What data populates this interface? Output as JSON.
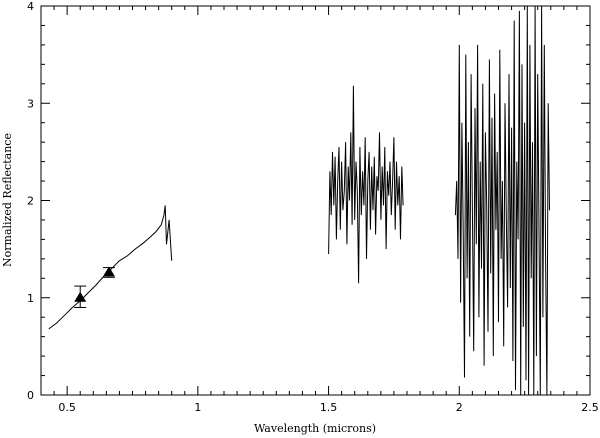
{
  "chart_data": {
    "type": "line",
    "xlabel": "Wavelength (microns)",
    "ylabel": "Normalized Reflectance",
    "xlim": [
      0.4,
      2.5
    ],
    "ylim": [
      0,
      4
    ],
    "x_ticks": [
      0.5,
      1,
      1.5,
      2,
      2.5
    ],
    "x_tick_labels": [
      "0.5",
      "1",
      "1.5",
      "2",
      "2.5"
    ],
    "y_ticks": [
      0,
      1,
      2,
      3,
      4
    ],
    "y_tick_labels": [
      "0",
      "1",
      "2",
      "3",
      "4"
    ],
    "grid": false,
    "series": [
      {
        "style": "line",
        "color": "#000000",
        "segments": [
          {
            "x": [
              0.43,
              0.46,
              0.49,
              0.52,
              0.55,
              0.58,
              0.61,
              0.64,
              0.67,
              0.7,
              0.73,
              0.76,
              0.79,
              0.82,
              0.84,
              0.86,
              0.87,
              0.875,
              0.88,
              0.89,
              0.9
            ],
            "y": [
              0.68,
              0.74,
              0.82,
              0.9,
              0.97,
              1.05,
              1.13,
              1.22,
              1.3,
              1.38,
              1.43,
              1.5,
              1.56,
              1.63,
              1.68,
              1.75,
              1.85,
              1.95,
              1.55,
              1.8,
              1.38
            ]
          },
          {
            "x": [
              1.5,
              1.505,
              1.51,
              1.515,
              1.52,
              1.525,
              1.53,
              1.535,
              1.54,
              1.545,
              1.55,
              1.555,
              1.56,
              1.565,
              1.57,
              1.575,
              1.58,
              1.585,
              1.59,
              1.595,
              1.6,
              1.605,
              1.61,
              1.615,
              1.62,
              1.625,
              1.63,
              1.635,
              1.64,
              1.645,
              1.65,
              1.655,
              1.66,
              1.665,
              1.67,
              1.675,
              1.68,
              1.685,
              1.69,
              1.695,
              1.7,
              1.705,
              1.71,
              1.715,
              1.72,
              1.725,
              1.73,
              1.735,
              1.74,
              1.745,
              1.75,
              1.755,
              1.76,
              1.765,
              1.77,
              1.775,
              1.78,
              1.785
            ],
            "y": [
              1.45,
              2.3,
              1.85,
              2.5,
              1.95,
              2.45,
              1.6,
              2.2,
              2.55,
              1.7,
              2.4,
              1.9,
              2.1,
              2.6,
              1.55,
              2.35,
              2.0,
              2.7,
              1.75,
              3.18,
              1.8,
              2.4,
              2.1,
              1.15,
              2.55,
              1.85,
              2.3,
              1.95,
              2.65,
              1.4,
              2.2,
              2.5,
              1.7,
              2.35,
              1.9,
              2.45,
              1.65,
              2.25,
              2.1,
              2.7,
              1.8,
              2.35,
              1.95,
              2.55,
              1.5,
              2.3,
              2.05,
              2.4,
              1.85,
              2.2,
              2.65,
              1.7,
              2.4,
              1.95,
              2.25,
              1.6,
              2.35,
              1.95
            ]
          },
          {
            "x": [
              1.985,
              1.99,
              1.995,
              2.0,
              2.005,
              2.01,
              2.015,
              2.02,
              2.025,
              2.03,
              2.035,
              2.04,
              2.045,
              2.05,
              2.055,
              2.06,
              2.065,
              2.07,
              2.075,
              2.08,
              2.085,
              2.09,
              2.095,
              2.1,
              2.105,
              2.11,
              2.115,
              2.12,
              2.125,
              2.13,
              2.135,
              2.14,
              2.145,
              2.15,
              2.155,
              2.16,
              2.165,
              2.17,
              2.175,
              2.18,
              2.185,
              2.19,
              2.195,
              2.2,
              2.205,
              2.21,
              2.215,
              2.22,
              2.225,
              2.23,
              2.235,
              2.24,
              2.245,
              2.25,
              2.255,
              2.26,
              2.265,
              2.27,
              2.275,
              2.28,
              2.285,
              2.29,
              2.295,
              2.3,
              2.305,
              2.31,
              2.315,
              2.32,
              2.325,
              2.33,
              2.335,
              2.34,
              2.345
            ],
            "y": [
              1.85,
              2.2,
              1.4,
              3.6,
              0.95,
              2.8,
              1.7,
              0.18,
              3.5,
              1.2,
              2.6,
              0.6,
              3.3,
              1.9,
              0.45,
              2.95,
              1.55,
              3.6,
              0.8,
              2.4,
              1.3,
              3.2,
              0.3,
              2.7,
              1.95,
              0.65,
              3.45,
              1.25,
              2.85,
              0.4,
              3.1,
              1.7,
              2.5,
              0.75,
              3.55,
              1.4,
              2.2,
              0.5,
              3.0,
              1.85,
              0.9,
              3.3,
              1.1,
              2.75,
              0.35,
              3.85,
              0.05,
              2.4,
              1.6,
              3.95,
              0.0,
              3.4,
              0.7,
              2.8,
              0.15,
              4.0,
              0.0,
              3.6,
              1.2,
              2.6,
              0.0,
              4.0,
              0.4,
              3.3,
              1.7,
              0.0,
              4.0,
              0.8,
              3.6,
              1.4,
              0.0,
              3.0,
              1.9
            ]
          }
        ]
      },
      {
        "style": "triangle-markers-with-error-bars",
        "color": "#000000",
        "points": [
          {
            "x": 0.55,
            "y": 1.0,
            "err_low": 0.9,
            "err_high": 1.12
          },
          {
            "x": 0.66,
            "y": 1.26,
            "err_low": 1.21,
            "err_high": 1.31
          }
        ]
      }
    ]
  }
}
